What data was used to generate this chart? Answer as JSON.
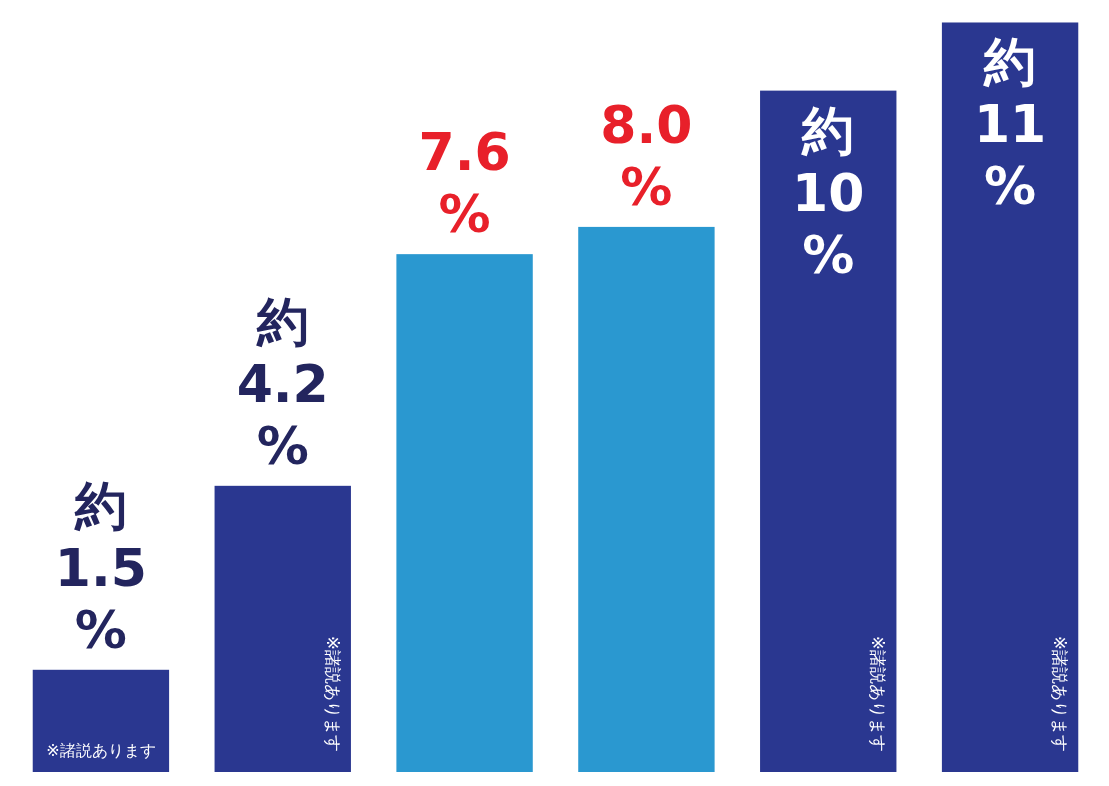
{
  "chart_data": {
    "type": "bar",
    "categories": [
      null,
      null,
      null,
      null,
      null,
      null
    ],
    "values": [
      1.5,
      4.2,
      7.6,
      8.0,
      10,
      11
    ],
    "colors": [
      "#2a3790",
      "#2a3790",
      "#2a98d0",
      "#2a98d0",
      "#2a3790",
      "#2a3790"
    ],
    "value_labels": [
      "約\n1.5\n%",
      "約\n4.2\n%",
      "7.6\n%",
      "8.0\n%",
      "約\n10\n%",
      "約\n11\n%"
    ],
    "annotations": [
      "※諸説あります",
      "※諸説あります",
      "※諸説あります",
      "※諸説あります"
    ]
  }
}
